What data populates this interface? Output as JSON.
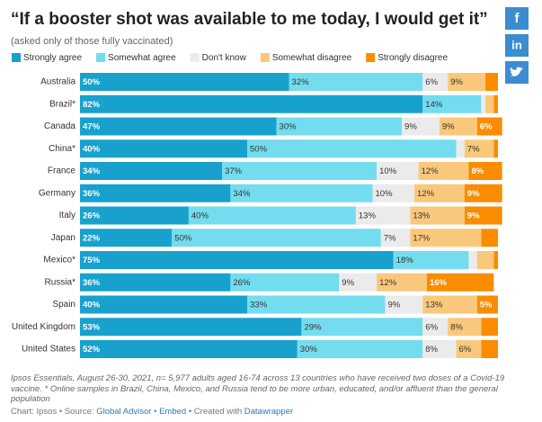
{
  "chart_data": {
    "type": "bar",
    "orientation": "horizontal",
    "stacked": true,
    "title": "“If a booster shot was available to me today, I would get it”",
    "subtitle": "(asked only of those fully vaccinated)",
    "categories": [
      "Australia",
      "Brazil*",
      "Canada",
      "China*",
      "France",
      "Germany",
      "Italy",
      "Japan",
      "Mexico*",
      "Russia*",
      "Spain",
      "United Kingdom",
      "United States"
    ],
    "xlim": [
      0,
      100
    ],
    "series": [
      {
        "name": "Strongly agree",
        "color": "#18a1cd",
        "label_color": "#ffffff",
        "label_bold": true,
        "values": [
          50,
          82,
          47,
          40,
          34,
          36,
          26,
          22,
          75,
          36,
          40,
          53,
          52
        ],
        "value_labels": [
          "50%",
          "82%",
          "47%",
          "40%",
          "34%",
          "36%",
          "26%",
          "22%",
          "75%",
          "36%",
          "40%",
          "53%",
          "52%"
        ]
      },
      {
        "name": "Somewhat agree",
        "color": "#73dcef",
        "label_color": "#333333",
        "label_bold": false,
        "values": [
          32,
          14,
          30,
          50,
          37,
          34,
          40,
          50,
          18,
          26,
          33,
          29,
          30
        ],
        "value_labels": [
          "32%",
          "14%",
          "30%",
          "50%",
          "37%",
          "34%",
          "40%",
          "50%",
          "18%",
          "26%",
          "33%",
          "29%",
          "30%"
        ]
      },
      {
        "name": "Don't know",
        "color": "#ebebeb",
        "label_color": "#333333",
        "label_bold": false,
        "values": [
          6,
          1,
          9,
          2,
          10,
          10,
          13,
          7,
          2,
          9,
          9,
          6,
          8
        ],
        "value_labels": [
          "6%",
          null,
          "9%",
          null,
          "10%",
          "10%",
          "13%",
          "7%",
          null,
          "9%",
          "9%",
          "6%",
          "8%"
        ]
      },
      {
        "name": "Somewhat disagree",
        "color": "#fac87c",
        "label_color": "#333333",
        "label_bold": false,
        "values": [
          9,
          2,
          9,
          7,
          12,
          12,
          13,
          17,
          4,
          12,
          13,
          8,
          6
        ],
        "value_labels": [
          "9%",
          null,
          "9%",
          "7%",
          "12%",
          "12%",
          "13%",
          "17%",
          null,
          "12%",
          "13%",
          "8%",
          "6%"
        ]
      },
      {
        "name": "Strongly disagree",
        "color": "#fa8c00",
        "label_color": "#ffffff",
        "label_bold": true,
        "values": [
          3,
          1,
          6,
          1,
          8,
          9,
          9,
          4,
          1,
          16,
          5,
          4,
          4
        ],
        "value_labels": [
          null,
          null,
          "6%",
          null,
          "8%",
          "9%",
          "9%",
          null,
          null,
          "16%",
          "5%",
          null,
          null
        ]
      }
    ],
    "notes": "Ipsos Essentials, August 26-30, 2021, n= 5,977 adults aged 16-74 across 13 countries who have received two doses of a Covid-19 vaccine. * Online samples in Brazil, China, Mexico, and Russia tend to be more urban, educated, and/or affluent than the general population",
    "credit_parts": [
      "Chart: Ipsos • Source: ",
      "Global Advisor",
      " • ",
      "Embed",
      " • Created with ",
      "Datawrapper"
    ],
    "credit_links": [
      false,
      true,
      false,
      true,
      false,
      true
    ]
  },
  "share": [
    "f",
    "in"
  ]
}
